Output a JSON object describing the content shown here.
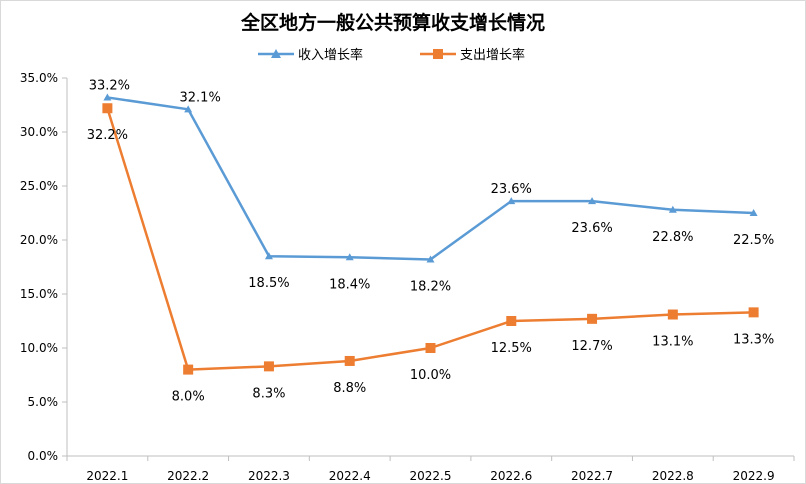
{
  "chart_data": {
    "type": "line",
    "title": "全区地方一般公共预算收支增长情况",
    "xlabel": "",
    "ylabel": "",
    "categories": [
      "2022.1",
      "2022.2",
      "2022.3",
      "2022.4",
      "2022.5",
      "2022.6",
      "2022.7",
      "2022.8",
      "2022.9"
    ],
    "y_tick_labels": [
      "0.0%",
      "5.0%",
      "10.0%",
      "15.0%",
      "20.0%",
      "25.0%",
      "30.0%",
      "35.0%"
    ],
    "ylim": [
      0,
      35
    ],
    "grid": false,
    "legend_position": "top",
    "series": [
      {
        "name": "收入增长率",
        "color": "#5b9bd5",
        "marker": "triangle",
        "values": [
          33.2,
          32.1,
          18.5,
          18.4,
          18.2,
          23.6,
          23.6,
          22.8,
          22.5
        ],
        "labels": [
          "33.2%",
          "32.1%",
          "18.5%",
          "18.4%",
          "18.2%",
          "23.6%",
          "23.6%",
          "22.8%",
          "22.5%"
        ]
      },
      {
        "name": "支出增长率",
        "color": "#ed7d31",
        "marker": "square",
        "values": [
          32.2,
          8.0,
          8.3,
          8.8,
          10.0,
          12.5,
          12.7,
          13.1,
          13.3
        ],
        "labels": [
          "32.2%",
          "8.0%",
          "8.3%",
          "8.8%",
          "10.0%",
          "12.5%",
          "12.7%",
          "13.1%",
          "13.3%"
        ]
      }
    ]
  }
}
